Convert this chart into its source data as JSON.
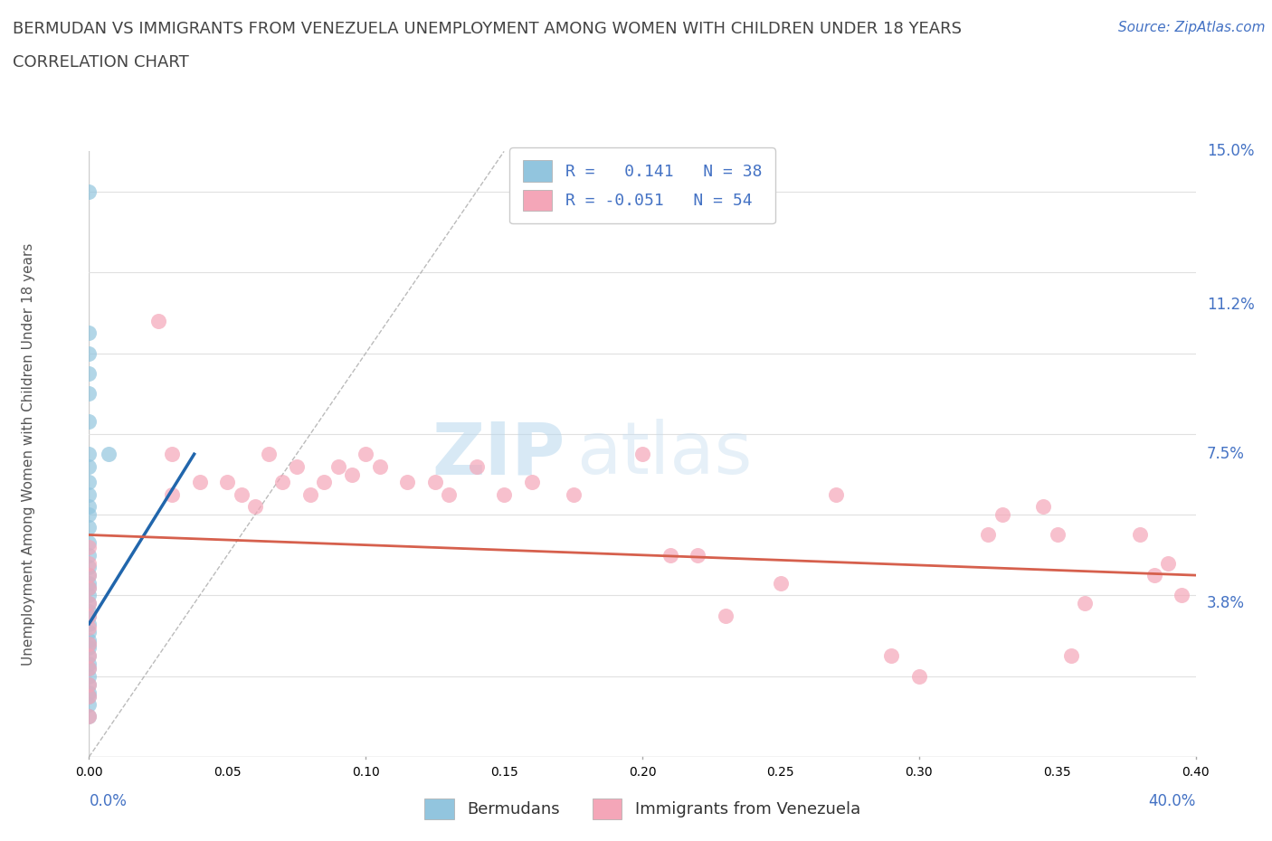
{
  "title_line1": "BERMUDAN VS IMMIGRANTS FROM VENEZUELA UNEMPLOYMENT AMONG WOMEN WITH CHILDREN UNDER 18 YEARS",
  "title_line2": "CORRELATION CHART",
  "source_text": "Source: ZipAtlas.com",
  "ylabel": "Unemployment Among Women with Children Under 18 years",
  "xmin": 0.0,
  "xmax": 0.4,
  "ymin": 0.0,
  "ymax": 0.15,
  "yticks": [
    0.0,
    0.038,
    0.075,
    0.112,
    0.15
  ],
  "ytick_labels": [
    "",
    "3.8%",
    "7.5%",
    "11.2%",
    "15.0%"
  ],
  "xticks": [
    0.0,
    0.1,
    0.2,
    0.3,
    0.4
  ],
  "xtick_labels": [
    "0.0%",
    "",
    "",
    "",
    "40.0%"
  ],
  "color_blue": "#92c5de",
  "color_pink": "#f4a6b8",
  "line_blue": "#2166ac",
  "line_pink": "#d6604d",
  "title_color": "#444444",
  "axis_color": "#4472c4",
  "legend_text_color": "#4472c4",
  "watermark_color": "#cde4f0",
  "bermuda_x": [
    0.0,
    0.0,
    0.0,
    0.0,
    0.0,
    0.0,
    0.0,
    0.0,
    0.0,
    0.0,
    0.0,
    0.0,
    0.0,
    0.007,
    0.0,
    0.0,
    0.0,
    0.0,
    0.0,
    0.0,
    0.0,
    0.0,
    0.0,
    0.0,
    0.0,
    0.0,
    0.0,
    0.0,
    0.0,
    0.0,
    0.0,
    0.0,
    0.0,
    0.0,
    0.0,
    0.0,
    0.0,
    0.0
  ],
  "bermuda_y": [
    0.14,
    0.105,
    0.1,
    0.095,
    0.09,
    0.083,
    0.075,
    0.072,
    0.068,
    0.065,
    0.062,
    0.06,
    0.057,
    0.075,
    0.053,
    0.05,
    0.047,
    0.045,
    0.043,
    0.042,
    0.04,
    0.038,
    0.036,
    0.035,
    0.033,
    0.031,
    0.029,
    0.027,
    0.025,
    0.023,
    0.02,
    0.018,
    0.015,
    0.013,
    0.01,
    0.022,
    0.028,
    0.016
  ],
  "venezuela_x": [
    0.0,
    0.0,
    0.0,
    0.0,
    0.0,
    0.0,
    0.0,
    0.0,
    0.0,
    0.0,
    0.0,
    0.0,
    0.0,
    0.025,
    0.03,
    0.03,
    0.04,
    0.05,
    0.055,
    0.06,
    0.065,
    0.07,
    0.075,
    0.08,
    0.085,
    0.09,
    0.095,
    0.1,
    0.105,
    0.115,
    0.125,
    0.13,
    0.14,
    0.15,
    0.16,
    0.175,
    0.2,
    0.21,
    0.23,
    0.25,
    0.27,
    0.3,
    0.325,
    0.33,
    0.345,
    0.355,
    0.36,
    0.38,
    0.385,
    0.39,
    0.395,
    0.35,
    0.22,
    0.29
  ],
  "venezuela_y": [
    0.052,
    0.048,
    0.045,
    0.042,
    0.038,
    0.035,
    0.032,
    0.028,
    0.025,
    0.022,
    0.018,
    0.015,
    0.01,
    0.108,
    0.065,
    0.075,
    0.068,
    0.068,
    0.065,
    0.062,
    0.075,
    0.068,
    0.072,
    0.065,
    0.068,
    0.072,
    0.07,
    0.075,
    0.072,
    0.068,
    0.068,
    0.065,
    0.072,
    0.065,
    0.068,
    0.065,
    0.075,
    0.05,
    0.035,
    0.043,
    0.065,
    0.02,
    0.055,
    0.06,
    0.062,
    0.025,
    0.038,
    0.055,
    0.045,
    0.048,
    0.04,
    0.055,
    0.05,
    0.025
  ],
  "blue_line_x": [
    0.0,
    0.038
  ],
  "blue_line_y": [
    0.033,
    0.075
  ],
  "pink_line_x": [
    0.0,
    0.4
  ],
  "pink_line_y": [
    0.055,
    0.045
  ]
}
